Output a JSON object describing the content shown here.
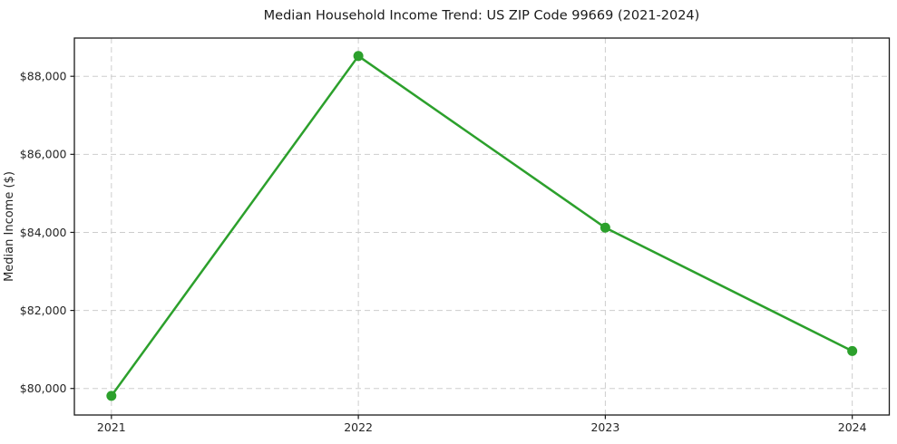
{
  "window": {
    "background_color": "#ffffff"
  },
  "chart_data": {
    "type": "line",
    "title": "Median Household Income Trend: US ZIP Code 99669 (2021-2024)",
    "xlabel": "",
    "ylabel": "Median Income ($)",
    "categories": [
      2021,
      2022,
      2023,
      2024
    ],
    "values": [
      79810,
      88520,
      84120,
      80960
    ],
    "xlim": [
      2020.85,
      2024.15
    ],
    "ylim": [
      79320,
      88980
    ],
    "xticks": {
      "values": [
        2021,
        2022,
        2023,
        2024
      ],
      "labels": [
        "2021",
        "2022",
        "2023",
        "2024"
      ]
    },
    "yticks": {
      "values": [
        80000,
        82000,
        84000,
        86000,
        88000
      ],
      "labels": [
        "$80,000",
        "$82,000",
        "$84,000",
        "$86,000",
        "$88,000"
      ]
    },
    "grid": true,
    "grid_style": "dashed",
    "legend_position": "none",
    "colors": {
      "line": "#2ca02c",
      "marker": "#2ca02c",
      "grid": "#cdcdcd",
      "axis": "#1a1a1a",
      "text": "#262626"
    }
  }
}
